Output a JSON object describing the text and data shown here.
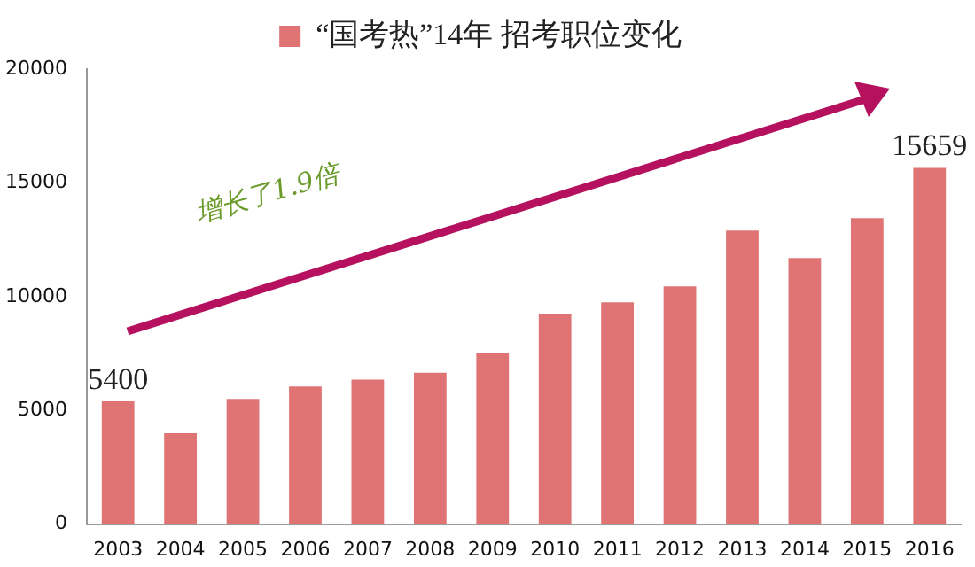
{
  "chart_data": {
    "type": "bar",
    "categories": [
      "2003",
      "2004",
      "2005",
      "2006",
      "2007",
      "2008",
      "2009",
      "2010",
      "2011",
      "2012",
      "2013",
      "2014",
      "2015",
      "2016"
    ],
    "series": [
      {
        "name": "“国考热”14年 招考职位变化",
        "color": "#e07474",
        "values": [
          5400,
          4000,
          5500,
          6050,
          6350,
          6650,
          7500,
          9250,
          9750,
          10450,
          12900,
          11700,
          13450,
          15659
        ],
        "value_labels": [
          "5400",
          null,
          null,
          null,
          null,
          null,
          null,
          null,
          null,
          null,
          null,
          null,
          null,
          "15659"
        ]
      }
    ],
    "ylim": [
      0,
      20000
    ],
    "yticks": [
      0,
      5000,
      10000,
      15000,
      20000
    ],
    "grid": false,
    "legend": "top",
    "annotations": [
      "增长了1.9倍"
    ]
  }
}
